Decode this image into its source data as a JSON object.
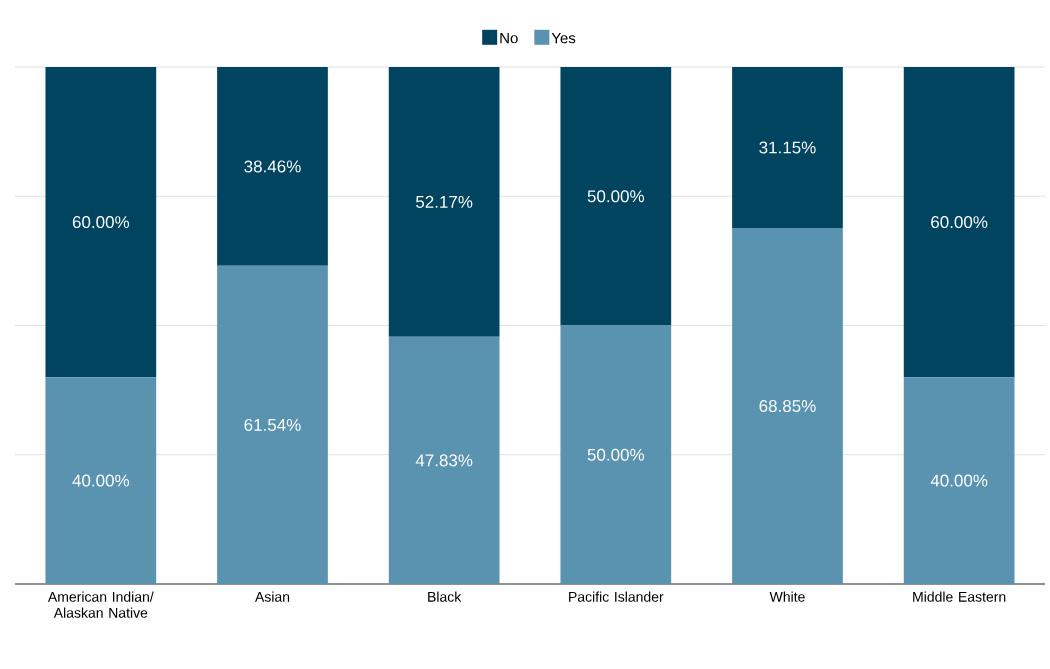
{
  "chart_data": {
    "type": "bar",
    "stacked": true,
    "categories": [
      "American Indian/ Alaskan Native",
      "Asian",
      "Black",
      "Pacific Islander",
      "White",
      "Middle Eastern"
    ],
    "series": [
      {
        "name": "Yes",
        "color": "#5a93b0",
        "values": [
          40.0,
          61.54,
          47.83,
          50.0,
          68.85,
          40.0
        ],
        "value_labels": [
          "40.00%",
          "61.54%",
          "47.83%",
          "50.00%",
          "68.85%",
          "40.00%"
        ]
      },
      {
        "name": "No",
        "color": "#00445f",
        "values": [
          60.0,
          38.46,
          52.17,
          50.0,
          31.15,
          60.0
        ],
        "value_labels": [
          "60.00%",
          "38.46%",
          "52.17%",
          "50.00%",
          "31.15%",
          "60.00%"
        ]
      }
    ],
    "ylim": [
      0,
      100
    ],
    "yticks": [
      {
        "value": 0,
        "label": null
      },
      {
        "value": 25,
        "label": null
      },
      {
        "value": 50,
        "label": null
      },
      {
        "value": 75,
        "label": null
      },
      {
        "value": 100,
        "label": null
      }
    ],
    "tick_labels": "x",
    "grid": "y",
    "legend": "top"
  }
}
